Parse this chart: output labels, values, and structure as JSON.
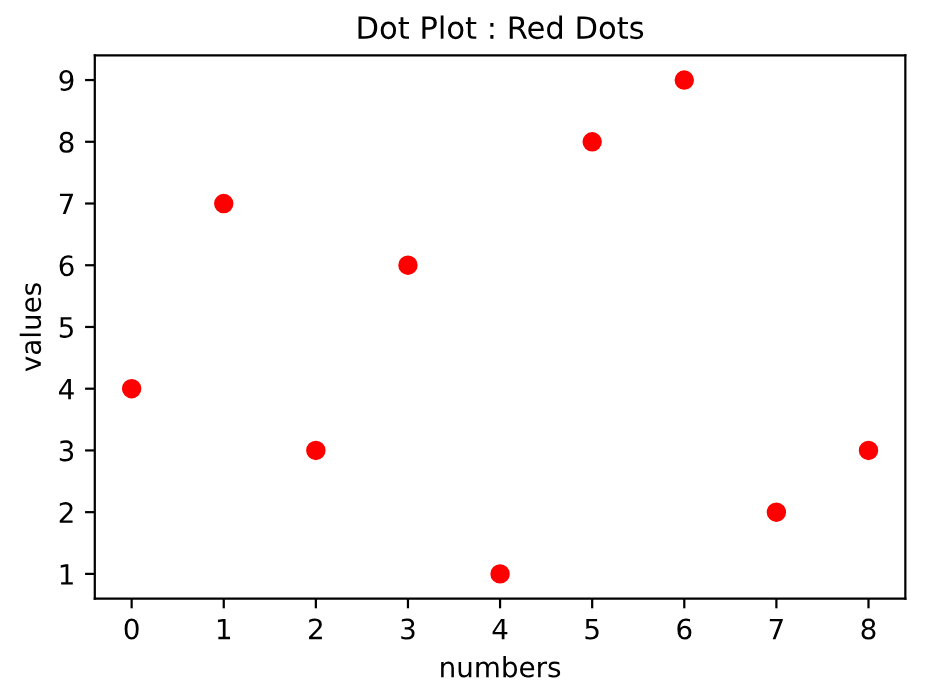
{
  "chart_data": {
    "type": "scatter",
    "title": "Dot Plot : Red Dots",
    "xlabel": "numbers",
    "ylabel": "values",
    "x": [
      0,
      1,
      2,
      3,
      4,
      5,
      6,
      7,
      8
    ],
    "series": [
      {
        "color": "#ff0000",
        "values": [
          4,
          7,
          3,
          6,
          1,
          8,
          9,
          2,
          3
        ]
      }
    ],
    "xlim": [
      -0.4,
      8.4
    ],
    "ylim": [
      0.6,
      9.4
    ],
    "xticks": [
      0,
      1,
      2,
      3,
      4,
      5,
      6,
      7,
      8
    ],
    "yticks": [
      1,
      2,
      3,
      4,
      5,
      6,
      7,
      8,
      9
    ],
    "marker": "circle",
    "grid": false
  }
}
